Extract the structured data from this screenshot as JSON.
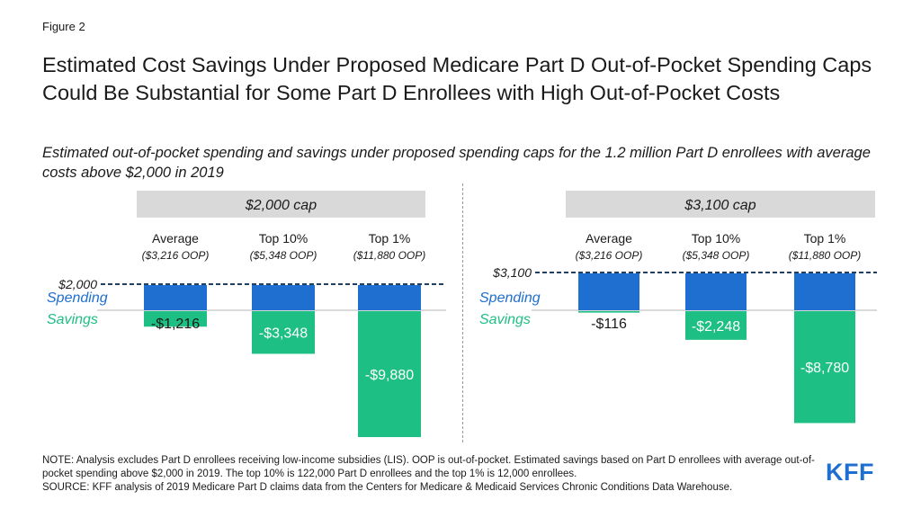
{
  "figure_label": "Figure 2",
  "title": "Estimated Cost Savings Under Proposed Medicare Part D Out-of-Pocket Spending Caps Could Be Substantial for Some Part D Enrollees with High Out-of-Pocket Costs",
  "subtitle": "Estimated out-of-pocket spending and savings under proposed spending caps for the 1.2 million Part D enrollees with average costs above $2,000 in 2019",
  "legend": {
    "spending": "Spending",
    "savings": "Savings"
  },
  "colors": {
    "spending": "#1f6fd1",
    "savings": "#1ebf85",
    "header_bg": "#d9d9d9",
    "cap_line": "#1e3f5f"
  },
  "chart_data": [
    {
      "type": "bar",
      "title": "$2,000 cap",
      "cap_label": "$2,000",
      "cap": 2000,
      "categories": [
        "Average",
        "Top 10%",
        "Top 1%"
      ],
      "category_sublabels": [
        "($3,216 OOP)",
        "($5,348 OOP)",
        "($11,880 OOP)"
      ],
      "series": [
        {
          "name": "Spending",
          "values": [
            2000,
            2000,
            2000
          ]
        },
        {
          "name": "Savings",
          "values": [
            -1216,
            -3348,
            -9880
          ],
          "labels": [
            "-$1,216",
            "-$3,348",
            "-$9,880"
          ]
        }
      ]
    },
    {
      "type": "bar",
      "title": "$3,100 cap",
      "cap_label": "$3,100",
      "cap": 3100,
      "categories": [
        "Average",
        "Top 10%",
        "Top 1%"
      ],
      "category_sublabels": [
        "($3,216 OOP)",
        "($5,348 OOP)",
        "($11,880 OOP)"
      ],
      "series": [
        {
          "name": "Spending",
          "values": [
            3100,
            3100,
            3100
          ]
        },
        {
          "name": "Savings",
          "values": [
            -116,
            -2248,
            -8780
          ],
          "labels": [
            "-$116",
            "-$2,248",
            "-$8,780"
          ]
        }
      ]
    }
  ],
  "note": "NOTE: Analysis excludes Part D enrollees receiving low-income subsidies (LIS). OOP is out-of-pocket. Estimated savings based on Part D enrollees with average out-of-pocket spending above $2,000 in 2019. The top 10% is 122,000 Part D enrollees and the top 1% is 12,000 enrollees.",
  "source": "SOURCE: KFF analysis of 2019 Medicare Part D claims data from the Centers for Medicare & Medicaid Services Chronic Conditions Data Warehouse.",
  "logo": "KFF"
}
